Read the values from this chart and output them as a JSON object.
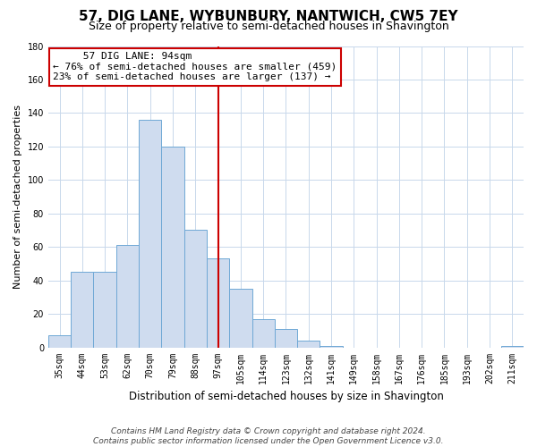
{
  "title": "57, DIG LANE, WYBUNBURY, NANTWICH, CW5 7EY",
  "subtitle": "Size of property relative to semi-detached houses in Shavington",
  "xlabel": "Distribution of semi-detached houses by size in Shavington",
  "ylabel": "Number of semi-detached properties",
  "bar_color": "#cfdcef",
  "bar_edge_color": "#6fa8d5",
  "background_color": "#ffffff",
  "grid_color": "#c8d8eb",
  "vline_color": "#cc0000",
  "annotation_title": "57 DIG LANE: 94sqm",
  "annotation_line1": "← 76% of semi-detached houses are smaller (459)",
  "annotation_line2": "23% of semi-detached houses are larger (137) →",
  "annotation_box_color": "#ffffff",
  "annotation_box_edge": "#cc0000",
  "bin_labels": [
    "35sqm",
    "44sqm",
    "53sqm",
    "62sqm",
    "70sqm",
    "79sqm",
    "88sqm",
    "97sqm",
    "105sqm",
    "114sqm",
    "123sqm",
    "132sqm",
    "141sqm",
    "149sqm",
    "158sqm",
    "167sqm",
    "176sqm",
    "185sqm",
    "193sqm",
    "202sqm",
    "211sqm"
  ],
  "bar_heights": [
    7,
    45,
    45,
    61,
    136,
    120,
    70,
    53,
    35,
    17,
    11,
    4,
    1,
    0,
    0,
    0,
    0,
    0,
    0,
    0,
    1
  ],
  "vline_idx": 7,
  "ylim": [
    0,
    180
  ],
  "yticks": [
    0,
    20,
    40,
    60,
    80,
    100,
    120,
    140,
    160,
    180
  ],
  "footer_line1": "Contains HM Land Registry data © Crown copyright and database right 2024.",
  "footer_line2": "Contains public sector information licensed under the Open Government Licence v3.0.",
  "title_fontsize": 11,
  "subtitle_fontsize": 9,
  "xlabel_fontsize": 8.5,
  "ylabel_fontsize": 8,
  "tick_fontsize": 7,
  "footer_fontsize": 6.5,
  "ann_fontsize": 8
}
